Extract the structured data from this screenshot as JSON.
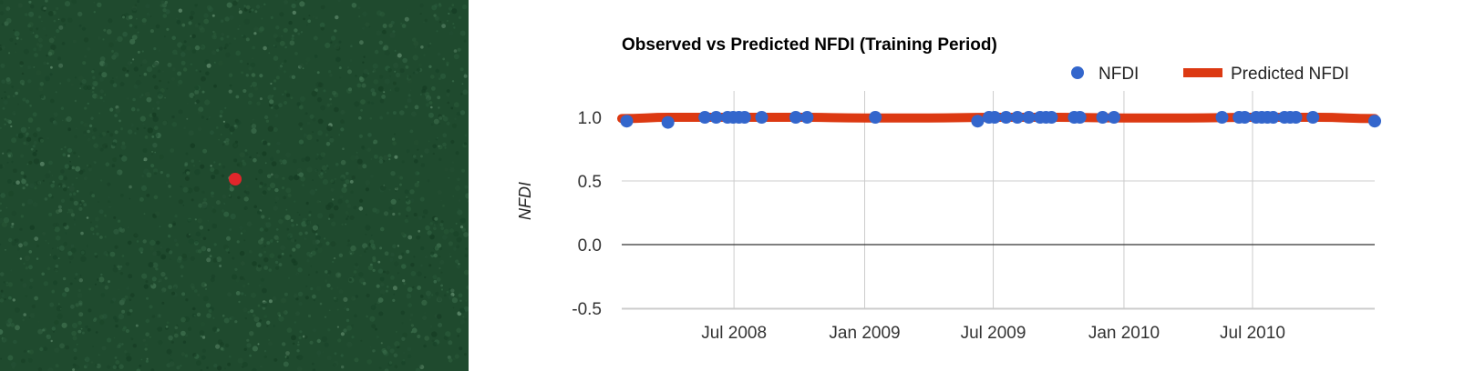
{
  "satellite_panel": {
    "base_color": "#1f4a2e",
    "marker_color": "#e0262b"
  },
  "chart_data": {
    "type": "line",
    "title": "Observed vs Predicted NFDI (Training Period)",
    "xlabel": "",
    "ylabel": "NFDI",
    "ylim": [
      -0.5,
      1.0
    ],
    "yticks": [
      1.0,
      0.5,
      0.0,
      -0.5
    ],
    "ytick_labels": [
      "1.0",
      "0.5",
      "0.0",
      "-0.5"
    ],
    "xlim": [
      "2008-01-25",
      "2010-12-20"
    ],
    "xticks": [
      "2008-07-01",
      "2009-01-01",
      "2009-07-01",
      "2010-01-01",
      "2010-07-01"
    ],
    "xtick_labels": [
      "Jul 2008",
      "Jan 2009",
      "Jul 2009",
      "Jan 2010",
      "Jul 2010"
    ],
    "grid": true,
    "legend_position": "top-right",
    "series": [
      {
        "name": "NFDI",
        "kind": "scatter",
        "color": "#3366cc",
        "points": [
          {
            "x": "2008-02-01",
            "y": 0.97
          },
          {
            "x": "2008-03-30",
            "y": 0.96
          },
          {
            "x": "2008-05-21",
            "y": 1.0
          },
          {
            "x": "2008-06-06",
            "y": 1.0
          },
          {
            "x": "2008-06-22",
            "y": 1.0
          },
          {
            "x": "2008-06-30",
            "y": 1.0
          },
          {
            "x": "2008-07-08",
            "y": 1.0
          },
          {
            "x": "2008-07-16",
            "y": 1.0
          },
          {
            "x": "2008-08-09",
            "y": 1.0
          },
          {
            "x": "2008-09-26",
            "y": 1.0
          },
          {
            "x": "2008-10-12",
            "y": 1.0
          },
          {
            "x": "2009-01-16",
            "y": 1.0
          },
          {
            "x": "2009-06-09",
            "y": 0.97
          },
          {
            "x": "2009-06-25",
            "y": 1.0
          },
          {
            "x": "2009-07-03",
            "y": 1.0
          },
          {
            "x": "2009-07-19",
            "y": 1.0
          },
          {
            "x": "2009-08-04",
            "y": 1.0
          },
          {
            "x": "2009-08-20",
            "y": 1.0
          },
          {
            "x": "2009-09-05",
            "y": 1.0
          },
          {
            "x": "2009-09-13",
            "y": 1.0
          },
          {
            "x": "2009-09-21",
            "y": 1.0
          },
          {
            "x": "2009-10-23",
            "y": 1.0
          },
          {
            "x": "2009-10-31",
            "y": 1.0
          },
          {
            "x": "2009-12-02",
            "y": 1.0
          },
          {
            "x": "2009-12-18",
            "y": 1.0
          },
          {
            "x": "2010-05-19",
            "y": 1.0
          },
          {
            "x": "2010-06-12",
            "y": 1.0
          },
          {
            "x": "2010-06-20",
            "y": 1.0
          },
          {
            "x": "2010-07-06",
            "y": 1.0
          },
          {
            "x": "2010-07-14",
            "y": 1.0
          },
          {
            "x": "2010-07-22",
            "y": 1.0
          },
          {
            "x": "2010-07-30",
            "y": 1.0
          },
          {
            "x": "2010-08-15",
            "y": 1.0
          },
          {
            "x": "2010-08-23",
            "y": 1.0
          },
          {
            "x": "2010-08-31",
            "y": 1.0
          },
          {
            "x": "2010-09-24",
            "y": 1.0
          },
          {
            "x": "2010-12-20",
            "y": 0.97
          }
        ]
      },
      {
        "name": "Predicted NFDI",
        "kind": "line",
        "color": "#dc3912",
        "points": [
          {
            "x": "2008-01-25",
            "y": 0.99
          },
          {
            "x": "2008-04-01",
            "y": 1.0
          },
          {
            "x": "2008-07-01",
            "y": 1.0
          },
          {
            "x": "2008-10-01",
            "y": 1.0
          },
          {
            "x": "2009-01-01",
            "y": 0.995
          },
          {
            "x": "2009-04-01",
            "y": 0.995
          },
          {
            "x": "2009-07-01",
            "y": 1.0
          },
          {
            "x": "2009-10-01",
            "y": 1.0
          },
          {
            "x": "2010-01-01",
            "y": 0.995
          },
          {
            "x": "2010-04-01",
            "y": 0.995
          },
          {
            "x": "2010-07-01",
            "y": 1.0
          },
          {
            "x": "2010-10-01",
            "y": 1.0
          },
          {
            "x": "2010-12-20",
            "y": 0.99
          }
        ]
      }
    ]
  }
}
